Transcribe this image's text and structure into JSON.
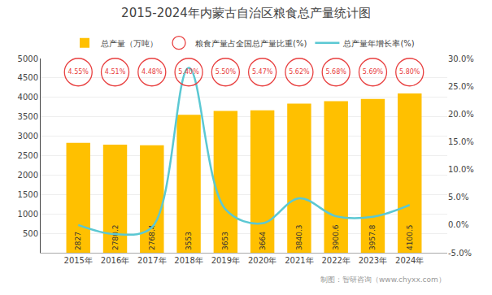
{
  "chart_data": {
    "type": "bar",
    "title": "2015-2024年内蒙古自治区粮食总产量统计图",
    "categories": [
      "2015年",
      "2016年",
      "2017年",
      "2018年",
      "2019年",
      "2020年",
      "2021年",
      "2022年",
      "2023年",
      "2024年"
    ],
    "series": [
      {
        "name": "总产量（万吨）",
        "type": "bar",
        "color": "#FFC000",
        "values": [
          2827,
          2780.2,
          2768.4,
          3553,
          3653,
          3664,
          3840.3,
          3900.6,
          3957.8,
          4100.5
        ],
        "data_labels": true
      },
      {
        "name": "粮食产量占全国总产量比重(%)",
        "type": "scatter",
        "marker": "circle",
        "color": "#E84040",
        "values": [
          4.55,
          4.51,
          4.48,
          5.4,
          5.5,
          5.47,
          5.62,
          5.68,
          5.69,
          5.8
        ],
        "value_labels": [
          "4.55%",
          "4.51%",
          "4.48%",
          "5.40%",
          "5.50%",
          "5.47%",
          "5.62%",
          "5.68%",
          "5.69%",
          "5.80%"
        ],
        "data_labels": true
      },
      {
        "name": "总产量年增长率(%)",
        "type": "line",
        "axis": "y2",
        "color": "#5BC8D3",
        "values": [
          0.0,
          -1.65,
          -0.42,
          28.33,
          2.81,
          0.3,
          4.81,
          1.57,
          1.47,
          3.6
        ]
      }
    ],
    "ylim": [
      0,
      5000
    ],
    "yticks": [
      500,
      1000,
      1500,
      2000,
      2500,
      3000,
      3500,
      4000,
      4500,
      5000
    ],
    "y2lim": [
      -5.0,
      30.0
    ],
    "y2ticks": [
      {
        "value": -5.0,
        "label": "-5.0%"
      },
      {
        "value": 0.0,
        "label": "0.0%"
      },
      {
        "value": 5.0,
        "label": "5.0%"
      },
      {
        "value": 10.0,
        "label": "10.0%"
      },
      {
        "value": 15.0,
        "label": "15.0%"
      },
      {
        "value": 20.0,
        "label": "20.0%"
      },
      {
        "value": 25.0,
        "label": "25.0%"
      },
      {
        "value": 30.0,
        "label": "30.0%"
      }
    ],
    "grid": true,
    "legend": "top",
    "annotations": [
      "制图：智研咨询（www.chyxx.com）"
    ]
  }
}
